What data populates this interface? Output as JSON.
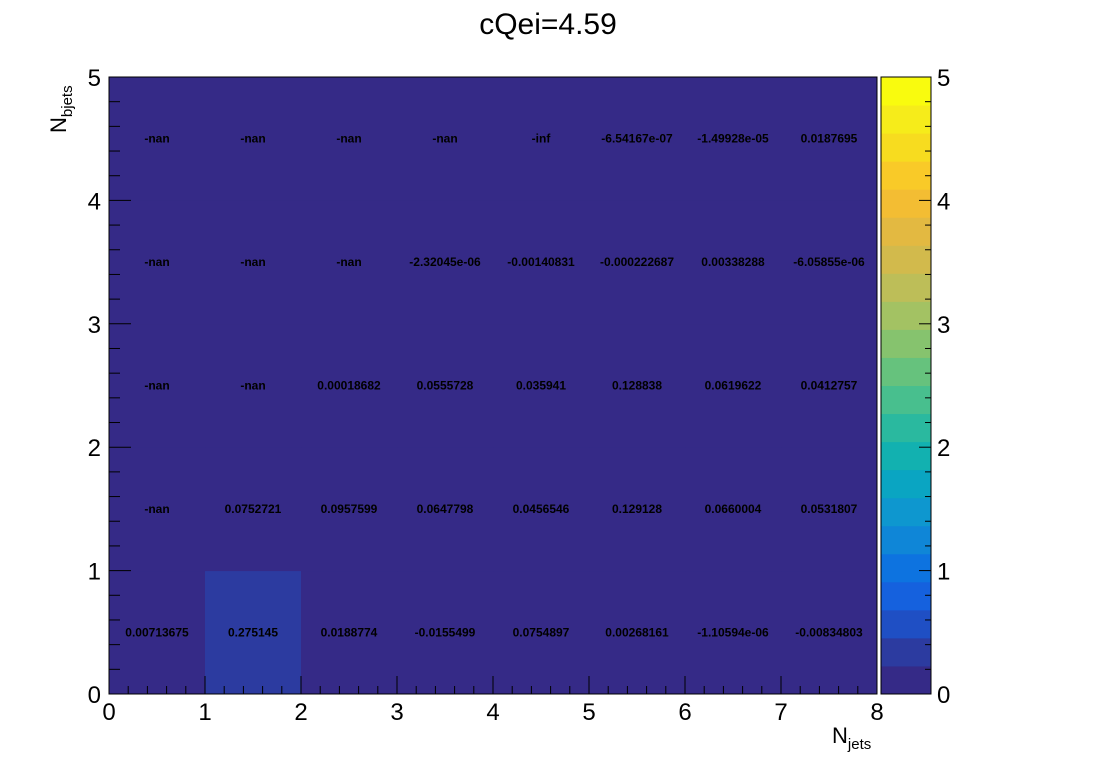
{
  "chart_data": {
    "type": "heatmap",
    "title": "cQei=4.59",
    "xlabel": {
      "main": "N",
      "sub": "jets"
    },
    "ylabel": {
      "main": "N",
      "sub": "bjets"
    },
    "xlim": [
      0,
      8
    ],
    "ylim": [
      0,
      5
    ],
    "x_ticks": [
      "0",
      "1",
      "2",
      "3",
      "4",
      "5",
      "6",
      "7",
      "8"
    ],
    "y_ticks": [
      "0",
      "1",
      "2",
      "3",
      "4",
      "5"
    ],
    "colorbar": {
      "range": [
        0,
        5
      ],
      "ticks": [
        "0",
        "1",
        "2",
        "3",
        "4",
        "5"
      ],
      "palette": [
        "#352a87",
        "#2c3ba0",
        "#1f4fc4",
        "#1561de",
        "#0d73e0",
        "#0f86d7",
        "#0e97cf",
        "#0aa5c2",
        "#12b1b0",
        "#2ab99f",
        "#48bf8e",
        "#66c27d",
        "#86c36e",
        "#a3c263",
        "#bdbe58",
        "#d2ba4c",
        "#e3b941",
        "#f3bd33",
        "#f9ca28",
        "#f7dc1f",
        "#f6ec1a",
        "#f9fb0e"
      ]
    },
    "rows_y_labels": [
      "0-1",
      "1-2",
      "2-3",
      "3-4",
      "4-5"
    ],
    "cells": [
      [
        "0.00713675",
        "0.275145",
        "0.0188774",
        "-0.0155499",
        "0.0754897",
        "0.00268161",
        "-1.10594e-06",
        "-0.00834803"
      ],
      [
        "-nan",
        "0.0752721",
        "0.0957599",
        "0.0647798",
        "0.0456546",
        "0.129128",
        "0.0660004",
        "0.0531807"
      ],
      [
        "-nan",
        "-nan",
        "0.00018682",
        "0.0555728",
        "0.035941",
        "0.128838",
        "0.0619622",
        "0.0412757"
      ],
      [
        "-nan",
        "-nan",
        "-nan",
        "-2.32045e-06",
        "-0.00140831",
        "-0.000222687",
        "0.00338288",
        "-6.05855e-06"
      ],
      [
        "-nan",
        "-nan",
        "-nan",
        "-nan",
        "-inf",
        "-6.54167e-07",
        "-1.49928e-05",
        "0.0187695"
      ]
    ],
    "nan_color": "#352a87"
  }
}
